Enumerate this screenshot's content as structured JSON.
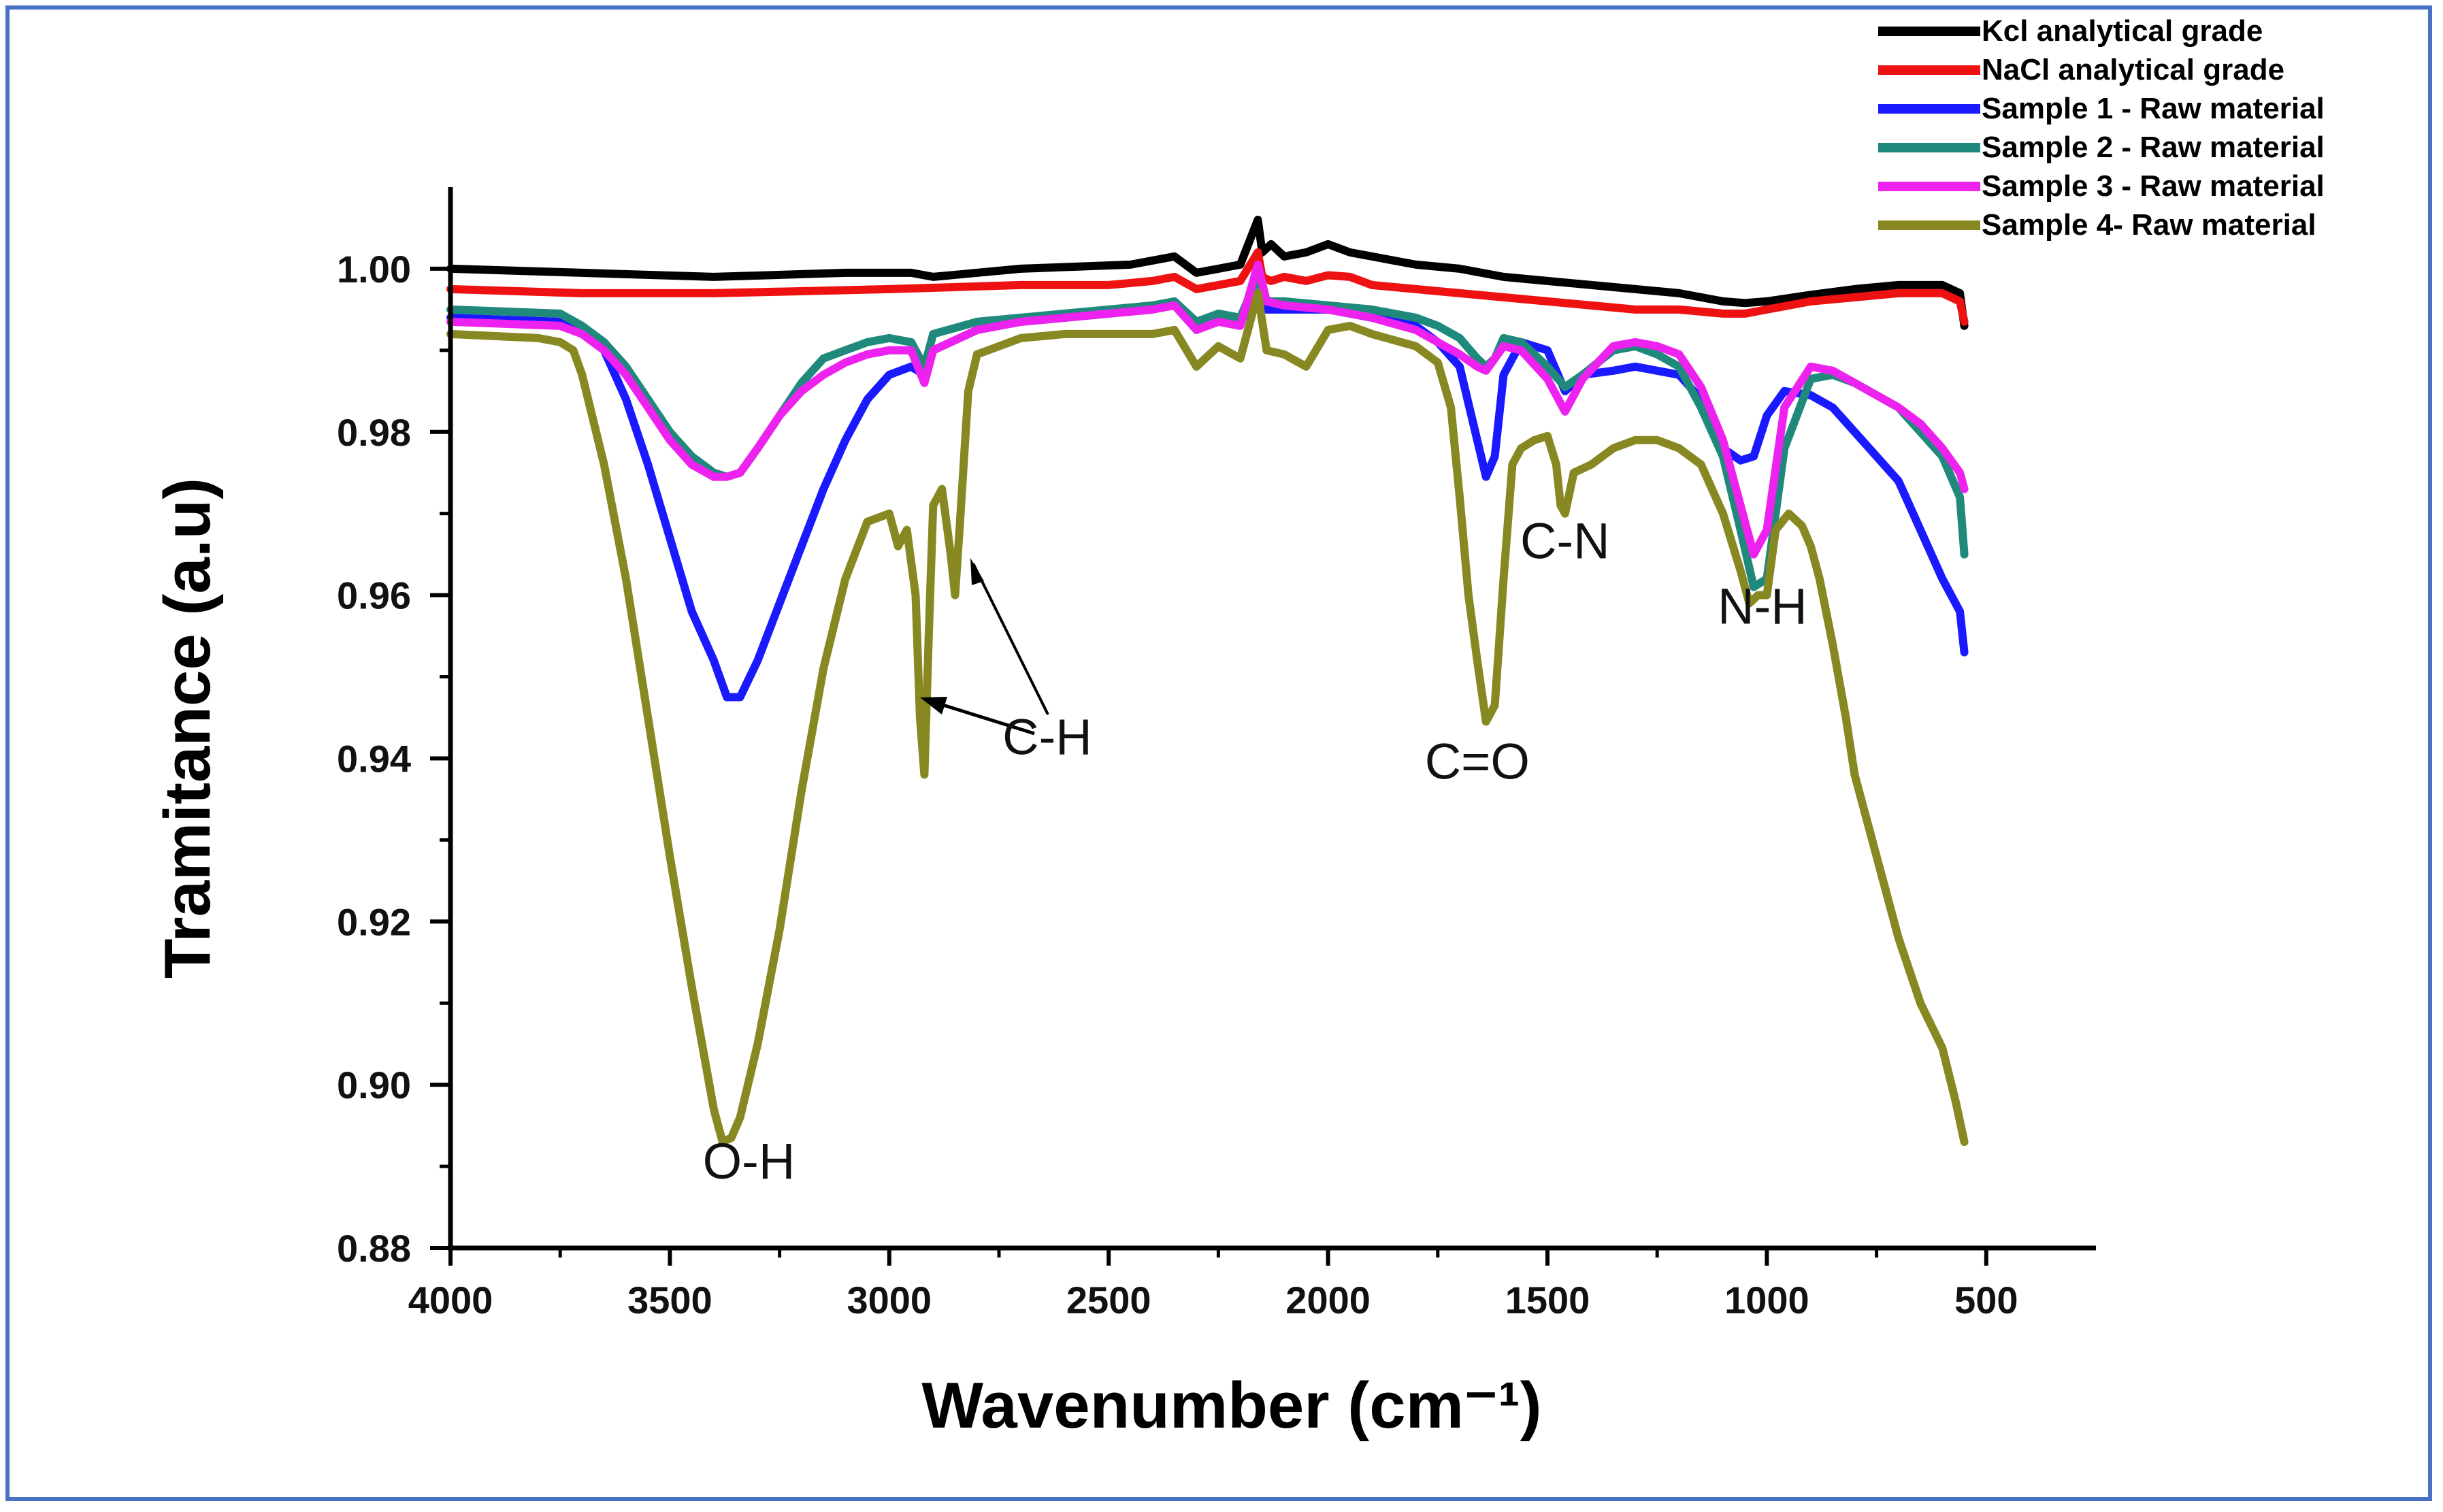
{
  "chart_data": {
    "type": "line",
    "title": "",
    "xlabel": "Wavenumber (cm⁻¹)",
    "ylabel": "Tramitance (a.u)",
    "xlim": [
      4000,
      250
    ],
    "ylim": [
      0.88,
      1.01
    ],
    "x_ticks": [
      4000,
      3500,
      3000,
      2500,
      2000,
      1500,
      1000,
      500
    ],
    "x_tick_labels": [
      "4000",
      "3500",
      "3000",
      "2500",
      "2000",
      "1500",
      "1000",
      "500"
    ],
    "y_ticks": [
      0.88,
      0.9,
      0.92,
      0.94,
      0.96,
      0.98,
      1.0
    ],
    "y_tick_labels": [
      "0.88",
      "0.90",
      "0.92",
      "0.94",
      "0.96",
      "0.98",
      "1.00"
    ],
    "legend_position": "top-right",
    "series": [
      {
        "name": "Kcl analytical grade",
        "color": "#000000",
        "x": [
          4000,
          3700,
          3400,
          3100,
          2950,
          2900,
          2700,
          2450,
          2350,
          2300,
          2200,
          2160,
          2150,
          2130,
          2100,
          2050,
          2000,
          1950,
          1900,
          1800,
          1700,
          1600,
          1500,
          1400,
          1300,
          1200,
          1100,
          1050,
          1000,
          900,
          800,
          700,
          600,
          560,
          550
        ],
        "y": [
          1.0,
          0.9995,
          0.999,
          0.9995,
          0.9995,
          0.999,
          1.0,
          1.0005,
          1.0015,
          0.9995,
          1.0005,
          1.006,
          1.002,
          1.003,
          1.0015,
          1.002,
          1.003,
          1.002,
          1.0015,
          1.0005,
          1.0,
          0.999,
          0.9985,
          0.998,
          0.9975,
          0.997,
          0.996,
          0.9958,
          0.996,
          0.9968,
          0.9975,
          0.998,
          0.998,
          0.997,
          0.993
        ]
      },
      {
        "name": "NaCl analytical grade",
        "color": "#ee1111",
        "x": [
          4000,
          3700,
          3400,
          3000,
          2700,
          2500,
          2400,
          2350,
          2300,
          2200,
          2160,
          2150,
          2130,
          2100,
          2050,
          2000,
          1950,
          1900,
          1800,
          1700,
          1600,
          1500,
          1400,
          1300,
          1200,
          1100,
          1050,
          1000,
          900,
          800,
          700,
          600,
          560,
          550
        ],
        "y": [
          0.9975,
          0.997,
          0.997,
          0.9975,
          0.998,
          0.998,
          0.9985,
          0.999,
          0.9975,
          0.9985,
          1.002,
          0.999,
          0.9985,
          0.999,
          0.9985,
          0.9992,
          0.999,
          0.998,
          0.9975,
          0.997,
          0.9965,
          0.996,
          0.9955,
          0.995,
          0.995,
          0.9945,
          0.9945,
          0.995,
          0.996,
          0.9965,
          0.997,
          0.997,
          0.996,
          0.9935
        ]
      },
      {
        "name": "Sample 1 - Raw material",
        "color": "#1a1aff",
        "x": [
          4000,
          3750,
          3700,
          3650,
          3600,
          3550,
          3500,
          3450,
          3400,
          3370,
          3340,
          3300,
          3250,
          3200,
          3150,
          3100,
          3050,
          3000,
          2950,
          2920,
          2900,
          2800,
          2700,
          2600,
          2500,
          2400,
          2350,
          2300,
          2250,
          2200,
          2160,
          2140,
          2100,
          2000,
          1900,
          1800,
          1750,
          1700,
          1660,
          1640,
          1620,
          1600,
          1560,
          1500,
          1460,
          1420,
          1350,
          1300,
          1250,
          1200,
          1150,
          1100,
          1060,
          1030,
          1000,
          960,
          900,
          850,
          800,
          700,
          650,
          600,
          560,
          550
        ],
        "y": [
          0.994,
          0.9935,
          0.993,
          0.99,
          0.984,
          0.976,
          0.967,
          0.958,
          0.952,
          0.9475,
          0.9475,
          0.952,
          0.959,
          0.966,
          0.973,
          0.979,
          0.984,
          0.987,
          0.988,
          0.987,
          0.99,
          0.9925,
          0.9935,
          0.994,
          0.9945,
          0.995,
          0.996,
          0.993,
          0.994,
          0.9935,
          0.997,
          0.995,
          0.995,
          0.995,
          0.994,
          0.993,
          0.991,
          0.988,
          0.979,
          0.9745,
          0.977,
          0.987,
          0.991,
          0.99,
          0.985,
          0.987,
          0.9875,
          0.988,
          0.9875,
          0.987,
          0.984,
          0.978,
          0.9765,
          0.977,
          0.982,
          0.985,
          0.9845,
          0.983,
          0.98,
          0.974,
          0.968,
          0.962,
          0.958,
          0.953
        ]
      },
      {
        "name": "Sample 2 - Raw material",
        "color": "#1f8a7c",
        "x": [
          4000,
          3750,
          3700,
          3650,
          3600,
          3550,
          3500,
          3450,
          3400,
          3370,
          3340,
          3300,
          3250,
          3200,
          3150,
          3100,
          3050,
          3000,
          2950,
          2920,
          2900,
          2800,
          2700,
          2600,
          2500,
          2400,
          2350,
          2300,
          2250,
          2200,
          2160,
          2140,
          2100,
          2000,
          1900,
          1800,
          1750,
          1700,
          1660,
          1640,
          1620,
          1600,
          1560,
          1500,
          1460,
          1420,
          1350,
          1300,
          1250,
          1200,
          1150,
          1100,
          1060,
          1030,
          1000,
          960,
          900,
          850,
          800,
          700,
          650,
          600,
          560,
          550
        ],
        "y": [
          0.995,
          0.9945,
          0.993,
          0.991,
          0.988,
          0.984,
          0.98,
          0.977,
          0.975,
          0.9745,
          0.975,
          0.978,
          0.982,
          0.986,
          0.989,
          0.99,
          0.991,
          0.9915,
          0.991,
          0.988,
          0.992,
          0.9935,
          0.994,
          0.9945,
          0.995,
          0.9955,
          0.996,
          0.9935,
          0.9945,
          0.994,
          0.999,
          0.996,
          0.996,
          0.9955,
          0.995,
          0.994,
          0.993,
          0.9915,
          0.989,
          0.988,
          0.989,
          0.9915,
          0.991,
          0.988,
          0.9855,
          0.987,
          0.99,
          0.9905,
          0.9895,
          0.988,
          0.983,
          0.977,
          0.968,
          0.961,
          0.962,
          0.978,
          0.9865,
          0.987,
          0.986,
          0.983,
          0.98,
          0.977,
          0.972,
          0.965
        ]
      },
      {
        "name": "Sample 3 - Raw material",
        "color": "#ee22ee",
        "x": [
          4000,
          3750,
          3700,
          3650,
          3600,
          3550,
          3500,
          3450,
          3400,
          3370,
          3340,
          3300,
          3250,
          3200,
          3150,
          3100,
          3050,
          3000,
          2950,
          2920,
          2900,
          2800,
          2700,
          2600,
          2500,
          2400,
          2350,
          2300,
          2250,
          2200,
          2160,
          2140,
          2100,
          2000,
          1900,
          1800,
          1750,
          1700,
          1660,
          1640,
          1620,
          1600,
          1560,
          1500,
          1460,
          1420,
          1350,
          1300,
          1250,
          1200,
          1150,
          1100,
          1060,
          1030,
          1000,
          960,
          900,
          850,
          800,
          700,
          650,
          600,
          560,
          550
        ],
        "y": [
          0.9935,
          0.993,
          0.992,
          0.99,
          0.987,
          0.983,
          0.979,
          0.976,
          0.9745,
          0.9745,
          0.975,
          0.978,
          0.982,
          0.985,
          0.987,
          0.9885,
          0.9895,
          0.99,
          0.99,
          0.986,
          0.99,
          0.9925,
          0.9935,
          0.994,
          0.9945,
          0.995,
          0.9955,
          0.9925,
          0.9935,
          0.993,
          1.0005,
          0.996,
          0.9955,
          0.995,
          0.994,
          0.9925,
          0.991,
          0.9895,
          0.988,
          0.9875,
          0.989,
          0.9905,
          0.99,
          0.9865,
          0.9825,
          0.9865,
          0.9905,
          0.991,
          0.9905,
          0.9895,
          0.9855,
          0.979,
          0.971,
          0.965,
          0.968,
          0.983,
          0.988,
          0.9875,
          0.986,
          0.983,
          0.981,
          0.978,
          0.975,
          0.973
        ]
      },
      {
        "name": "Sample 4- Raw material",
        "color": "#888822",
        "x": [
          4000,
          3800,
          3750,
          3720,
          3700,
          3650,
          3600,
          3550,
          3500,
          3450,
          3420,
          3400,
          3380,
          3360,
          3340,
          3300,
          3250,
          3200,
          3150,
          3100,
          3050,
          3000,
          2980,
          2960,
          2940,
          2930,
          2920,
          2910,
          2900,
          2880,
          2860,
          2850,
          2840,
          2820,
          2800,
          2700,
          2600,
          2500,
          2400,
          2350,
          2300,
          2250,
          2200,
          2160,
          2140,
          2100,
          2050,
          2000,
          1950,
          1900,
          1800,
          1750,
          1720,
          1700,
          1680,
          1660,
          1640,
          1620,
          1600,
          1580,
          1560,
          1530,
          1500,
          1480,
          1470,
          1460,
          1440,
          1400,
          1350,
          1300,
          1250,
          1200,
          1150,
          1100,
          1060,
          1040,
          1020,
          1000,
          980,
          950,
          920,
          900,
          880,
          850,
          820,
          800,
          750,
          700,
          650,
          600,
          570,
          550
        ],
        "y": [
          0.992,
          0.9915,
          0.991,
          0.99,
          0.987,
          0.976,
          0.962,
          0.945,
          0.928,
          0.912,
          0.903,
          0.897,
          0.893,
          0.8935,
          0.896,
          0.905,
          0.919,
          0.936,
          0.951,
          0.962,
          0.969,
          0.97,
          0.966,
          0.968,
          0.96,
          0.945,
          0.938,
          0.955,
          0.971,
          0.973,
          0.965,
          0.96,
          0.968,
          0.985,
          0.9895,
          0.9915,
          0.992,
          0.992,
          0.992,
          0.9925,
          0.988,
          0.9905,
          0.989,
          0.997,
          0.99,
          0.9895,
          0.988,
          0.9925,
          0.993,
          0.992,
          0.9905,
          0.9885,
          0.983,
          0.972,
          0.96,
          0.952,
          0.9445,
          0.9465,
          0.962,
          0.976,
          0.978,
          0.979,
          0.9795,
          0.976,
          0.971,
          0.97,
          0.975,
          0.976,
          0.978,
          0.979,
          0.979,
          0.978,
          0.976,
          0.97,
          0.963,
          0.959,
          0.96,
          0.96,
          0.968,
          0.97,
          0.9685,
          0.966,
          0.962,
          0.954,
          0.945,
          0.938,
          0.928,
          0.918,
          0.91,
          0.9045,
          0.898,
          0.893
        ]
      }
    ],
    "annotations": [
      {
        "text": "O-H",
        "x": 3320,
        "y": 0.8885
      },
      {
        "text": "C-H",
        "x": 2640,
        "y": 0.9405
      },
      {
        "text": "C=O",
        "x": 1660,
        "y": 0.9375
      },
      {
        "text": "C-N",
        "x": 1460,
        "y": 0.9645
      },
      {
        "text": "N-H",
        "x": 1010,
        "y": 0.9565
      }
    ]
  }
}
